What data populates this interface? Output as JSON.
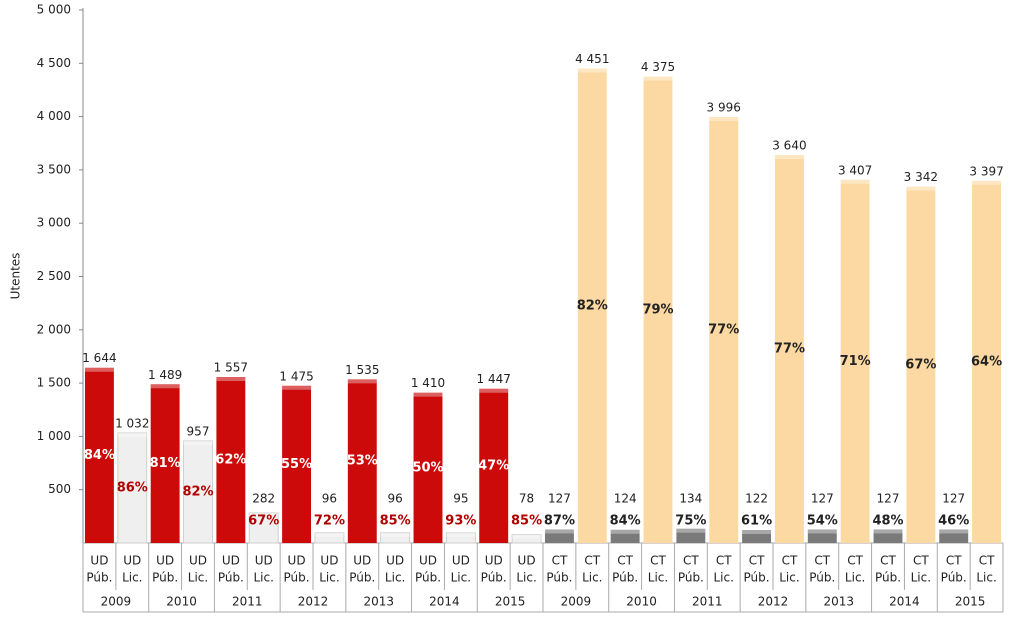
{
  "chart_data": {
    "type": "bar",
    "ylabel": "Utentes",
    "ylim": [
      0,
      5000
    ],
    "yticks": [
      500,
      {
        "value": 1000,
        "label": "1 000"
      },
      {
        "value": 1500,
        "label": "1 500"
      },
      {
        "value": 2000,
        "label": "2 000"
      },
      {
        "value": 2500,
        "label": "2 500"
      },
      {
        "value": 3000,
        "label": "3 000"
      },
      {
        "value": 3500,
        "label": "3 500"
      },
      {
        "value": 4000,
        "label": "4 000"
      },
      {
        "value": 4500,
        "label": "4 500"
      },
      {
        "value": 5000,
        "label": "5 000"
      }
    ],
    "years": [
      "2009",
      "2010",
      "2011",
      "2012",
      "2013",
      "2014",
      "2015",
      "2009",
      "2010",
      "2011",
      "2012",
      "2013",
      "2014",
      "2015"
    ],
    "categories": [
      [
        "UD",
        "Púb."
      ],
      [
        "UD",
        "Lic."
      ],
      [
        "UD",
        "Púb."
      ],
      [
        "UD",
        "Lic."
      ],
      [
        "UD",
        "Púb."
      ],
      [
        "UD",
        "Lic."
      ],
      [
        "UD",
        "Púb."
      ],
      [
        "UD",
        "Lic."
      ],
      [
        "UD",
        "Púb."
      ],
      [
        "UD",
        "Lic."
      ],
      [
        "UD",
        "Púb."
      ],
      [
        "UD",
        "Lic."
      ],
      [
        "UD",
        "Púb."
      ],
      [
        "UD",
        "Lic."
      ],
      [
        "CT",
        "Púb."
      ],
      [
        "CT",
        "Lic."
      ],
      [
        "CT",
        "Púb."
      ],
      [
        "CT",
        "Lic."
      ],
      [
        "CT",
        "Púb."
      ],
      [
        "CT",
        "Lic."
      ],
      [
        "CT",
        "Púb."
      ],
      [
        "CT",
        "Lic."
      ],
      [
        "CT",
        "Púb."
      ],
      [
        "CT",
        "Lic."
      ],
      [
        "CT",
        "Púb."
      ],
      [
        "CT",
        "Lic."
      ],
      [
        "CT",
        "Púb."
      ],
      [
        "CT",
        "Lic."
      ]
    ],
    "values": [
      1644,
      1032,
      1489,
      957,
      1557,
      282,
      1475,
      96,
      1535,
      96,
      1410,
      95,
      1447,
      78,
      127,
      4451,
      124,
      4375,
      134,
      3996,
      122,
      3640,
      127,
      3407,
      127,
      3342,
      127,
      3397
    ],
    "value_labels": [
      "1 644",
      "1 032",
      "1 489",
      "957",
      "1 557",
      "282",
      "1 475",
      "96",
      "1 535",
      "96",
      "1 410",
      "95",
      "1 447",
      "78",
      "127",
      "4 451",
      "124",
      "4 375",
      "134",
      "3 996",
      "122",
      "3 640",
      "127",
      "3 407",
      "127",
      "3 342",
      "127",
      "3 397"
    ],
    "percent_labels": [
      "84%",
      "86%",
      "81%",
      "82%",
      "62%",
      "67%",
      "55%",
      "72%",
      "53%",
      "85%",
      "50%",
      "93%",
      "47%",
      "85%",
      "87%",
      "82%",
      "84%",
      "79%",
      "75%",
      "77%",
      "61%",
      "77%",
      "54%",
      "71%",
      "48%",
      "67%",
      "46%",
      "64%"
    ],
    "colors": [
      "#cc0a0a",
      "#efefef",
      "#cc0a0a",
      "#efefef",
      "#cc0a0a",
      "#efefef",
      "#cc0a0a",
      "#efefef",
      "#cc0a0a",
      "#efefef",
      "#cc0a0a",
      "#efefef",
      "#cc0a0a",
      "#efefef",
      "#7a7a7a",
      "#fcd9a2",
      "#7a7a7a",
      "#fcd9a2",
      "#7a7a7a",
      "#fcd9a2",
      "#7a7a7a",
      "#fcd9a2",
      "#7a7a7a",
      "#fcd9a2",
      "#7a7a7a",
      "#fcd9a2",
      "#7a7a7a",
      "#fcd9a2"
    ],
    "percent_colors": [
      "#ffffff",
      "#b00000",
      "#ffffff",
      "#b00000",
      "#ffffff",
      "#b00000",
      "#ffffff",
      "#b00000",
      "#ffffff",
      "#b00000",
      "#ffffff",
      "#b00000",
      "#ffffff",
      "#b00000",
      "#222222",
      "#222222",
      "#222222",
      "#222222",
      "#222222",
      "#222222",
      "#222222",
      "#222222",
      "#222222",
      "#222222",
      "#222222",
      "#222222",
      "#222222",
      "#222222"
    ]
  }
}
